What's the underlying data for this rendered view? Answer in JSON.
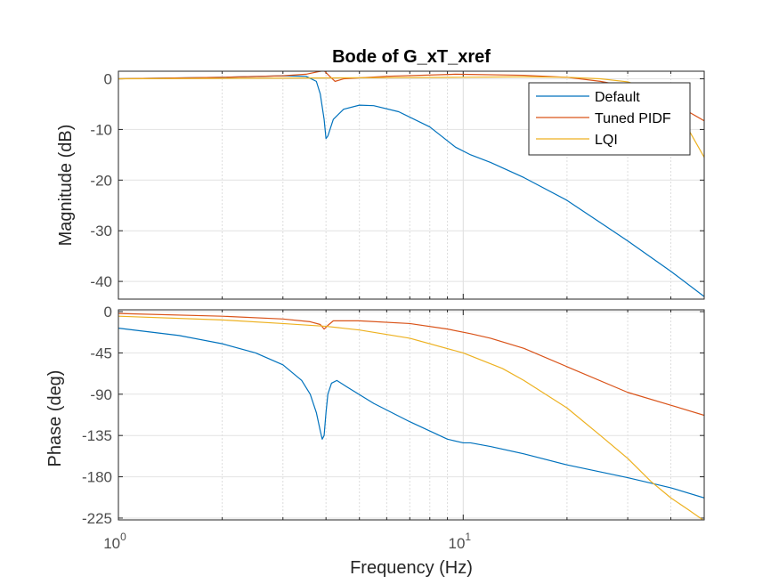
{
  "colors": {
    "Default": "#0072BD",
    "Tuned PIDF": "#D95319",
    "LQI": "#EDB120"
  },
  "chart_data": {
    "type": "line",
    "title": "Bode of G_xT_xref",
    "xlabel": "Frequency  (Hz)",
    "xscale": "log",
    "xlim": [
      1,
      50
    ],
    "x_ticks": [
      {
        "value": 1,
        "base": "10",
        "exp": "0"
      },
      {
        "value": 10,
        "base": "10",
        "exp": "1"
      }
    ],
    "grid": true,
    "legend": {
      "placement": "top-right",
      "entries": [
        "Default",
        "Tuned PIDF",
        "LQI"
      ]
    },
    "panels": [
      {
        "id": "magnitude",
        "ylabel": "Magnitude (dB)",
        "ylim": [
          -43.5,
          1.5
        ],
        "yticks": [
          "0",
          "-10",
          "-20",
          "-30",
          "-40"
        ],
        "ytick_values": [
          0,
          -10,
          -20,
          -30,
          -40
        ],
        "series": [
          {
            "name": "Default",
            "points": [
              [
                1,
                0
              ],
              [
                2,
                0.3
              ],
              [
                3,
                0.6
              ],
              [
                3.5,
                0.5
              ],
              [
                3.75,
                -0.5
              ],
              [
                3.85,
                -3
              ],
              [
                3.95,
                -8
              ],
              [
                4.0,
                -11.8
              ],
              [
                4.05,
                -11.3
              ],
              [
                4.2,
                -8
              ],
              [
                4.5,
                -6
              ],
              [
                5,
                -5.2
              ],
              [
                5.5,
                -5.3
              ],
              [
                6.5,
                -6.5
              ],
              [
                8,
                -9.5
              ],
              [
                9.5,
                -13.5
              ],
              [
                10.5,
                -15
              ],
              [
                12,
                -16.5
              ],
              [
                15,
                -19.5
              ],
              [
                20,
                -24
              ],
              [
                30,
                -32
              ],
              [
                40,
                -38
              ],
              [
                50,
                -43
              ]
            ]
          },
          {
            "name": "Tuned PIDF",
            "points": [
              [
                1,
                0
              ],
              [
                2,
                0.3
              ],
              [
                3,
                0.6
              ],
              [
                3.5,
                0.9
              ],
              [
                3.8,
                1.4
              ],
              [
                3.95,
                1.6
              ],
              [
                4.1,
                0.5
              ],
              [
                4.25,
                -0.5
              ],
              [
                4.5,
                0
              ],
              [
                6,
                0.5
              ],
              [
                9.5,
                0.9
              ],
              [
                15,
                0.7
              ],
              [
                20,
                0.3
              ],
              [
                25,
                -0.5
              ],
              [
                30,
                -1.5
              ],
              [
                40,
                -4.5
              ],
              [
                50,
                -8.3
              ]
            ]
          },
          {
            "name": "LQI",
            "points": [
              [
                1,
                0
              ],
              [
                5,
                0.2
              ],
              [
                10,
                0.3
              ],
              [
                15,
                0.4
              ],
              [
                20,
                0.3
              ],
              [
                25,
                0
              ],
              [
                30,
                -0.6
              ],
              [
                35,
                -2
              ],
              [
                40,
                -5
              ],
              [
                45,
                -10
              ],
              [
                50,
                -15.5
              ]
            ]
          }
        ]
      },
      {
        "id": "phase",
        "ylabel": "Phase (deg)",
        "ylim": [
          -227,
          2
        ],
        "yticks": [
          "0",
          "-45",
          "-90",
          "-135",
          "-180",
          "-225"
        ],
        "ytick_values": [
          0,
          -45,
          -90,
          -135,
          -180,
          -225
        ],
        "series": [
          {
            "name": "Default",
            "points": [
              [
                1,
                -18
              ],
              [
                1.5,
                -26
              ],
              [
                2,
                -35
              ],
              [
                2.5,
                -45
              ],
              [
                3,
                -58
              ],
              [
                3.4,
                -75
              ],
              [
                3.6,
                -90
              ],
              [
                3.75,
                -110
              ],
              [
                3.85,
                -130
              ],
              [
                3.9,
                -139
              ],
              [
                3.95,
                -135
              ],
              [
                4.0,
                -110
              ],
              [
                4.05,
                -90
              ],
              [
                4.15,
                -78
              ],
              [
                4.3,
                -75
              ],
              [
                4.6,
                -82
              ],
              [
                5.5,
                -100
              ],
              [
                7,
                -120
              ],
              [
                9,
                -139
              ],
              [
                10,
                -143
              ],
              [
                10.5,
                -143
              ],
              [
                12,
                -147
              ],
              [
                15,
                -155
              ],
              [
                20,
                -167
              ],
              [
                30,
                -181
              ],
              [
                40,
                -192
              ],
              [
                50,
                -203
              ]
            ]
          },
          {
            "name": "Tuned PIDF",
            "points": [
              [
                1,
                -2
              ],
              [
                2,
                -5
              ],
              [
                3,
                -8
              ],
              [
                3.6,
                -11
              ],
              [
                3.85,
                -14
              ],
              [
                3.95,
                -19
              ],
              [
                4.05,
                -15
              ],
              [
                4.2,
                -10
              ],
              [
                5,
                -10
              ],
              [
                7,
                -13
              ],
              [
                9,
                -19
              ],
              [
                10.5,
                -24
              ],
              [
                12,
                -29
              ],
              [
                15,
                -40
              ],
              [
                20,
                -60
              ],
              [
                30,
                -88
              ],
              [
                40,
                -102
              ],
              [
                50,
                -113
              ]
            ]
          },
          {
            "name": "LQI",
            "points": [
              [
                1,
                -5
              ],
              [
                2,
                -9
              ],
              [
                3,
                -13
              ],
              [
                4,
                -16
              ],
              [
                5,
                -20
              ],
              [
                7,
                -29
              ],
              [
                10,
                -45
              ],
              [
                13,
                -62
              ],
              [
                15,
                -75
              ],
              [
                20,
                -105
              ],
              [
                25,
                -135
              ],
              [
                30,
                -160
              ],
              [
                35,
                -185
              ],
              [
                40,
                -203
              ],
              [
                45,
                -216
              ],
              [
                50,
                -228
              ]
            ]
          }
        ]
      }
    ]
  }
}
